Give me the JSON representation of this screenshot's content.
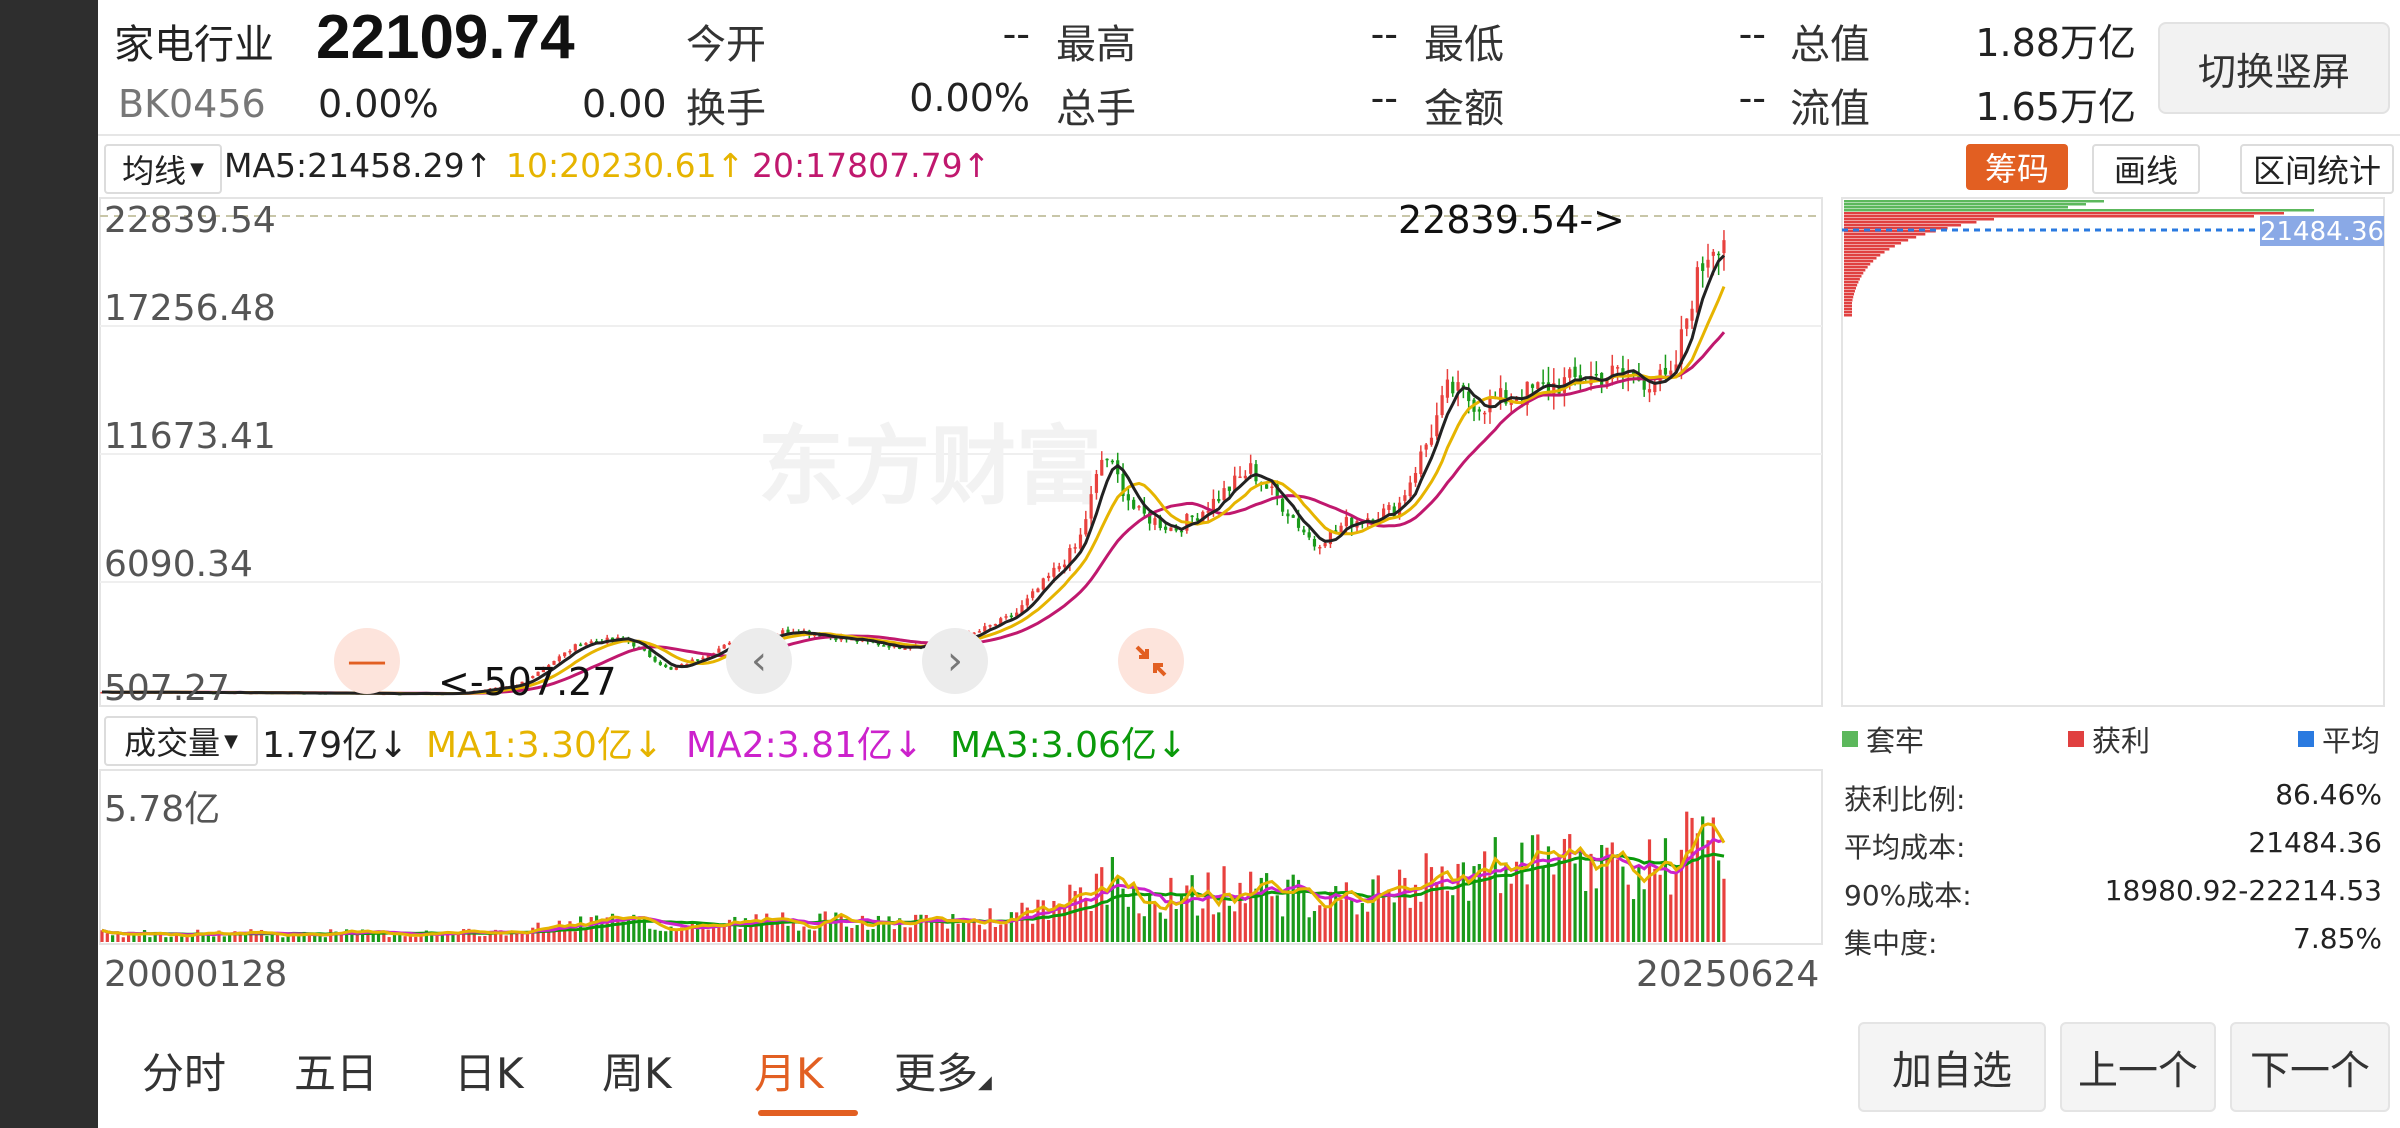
{
  "header": {
    "name": "家电行业",
    "price": "22109.74",
    "code": "BK0456",
    "change_pct": "0.00%",
    "change": "0.00",
    "open_label": "今开",
    "open_value": "--",
    "high_label": "最高",
    "high_value": "--",
    "low_label": "最低",
    "low_value": "--",
    "total_value_label": "总值",
    "total_value": "1.88万亿",
    "turnover_label": "换手",
    "turnover_value": "0.00%",
    "volume_label": "总手",
    "volume_value": "--",
    "amount_label": "金额",
    "amount_value": "--",
    "float_value_label": "流值",
    "float_value": "1.65万亿",
    "switch_label": "切换竖屏"
  },
  "ma_bar": {
    "selector": "均线",
    "ma5": "MA5:21458.29↑",
    "ma10": "10:20230.61↑",
    "ma20": "20:17807.79↑",
    "colors": {
      "ma5": "#222222",
      "ma10": "#e6b400",
      "ma20": "#c0186e"
    }
  },
  "tools": {
    "chips": "筹码",
    "draw": "画线",
    "range_stats": "区间统计"
  },
  "price_axis": [
    "22839.54",
    "17256.48",
    "11673.41",
    "6090.34",
    "507.27"
  ],
  "annotations": {
    "max": "22839.54->",
    "min": "<-507.27"
  },
  "watermark": "东方财富",
  "volume_bar": {
    "selector": "成交量",
    "current": "1.79亿↓",
    "ma1": "MA1:3.30亿↓",
    "ma2": "MA2:3.81亿↓",
    "ma3": "MA3:3.06亿↓",
    "axis_max": "5.78亿",
    "colors": {
      "ma1": "#e6b400",
      "ma2": "#cc22cc",
      "ma3": "#0a9a0a"
    }
  },
  "date_axis": {
    "start": "20000128",
    "end": "20250624"
  },
  "chip_panel": {
    "cost_tag": "21484.36",
    "legend": [
      "套牢",
      "获利",
      "平均"
    ],
    "legend_colors": [
      "#5cb85c",
      "#e04040",
      "#2a7ae0"
    ],
    "stats": [
      {
        "label": "获利比例:",
        "value": "86.46%"
      },
      {
        "label": "平均成本:",
        "value": "21484.36"
      },
      {
        "label": "90%成本:",
        "value": "18980.92-22214.53"
      },
      {
        "label": "集中度:",
        "value": "7.85%"
      }
    ]
  },
  "tabs": [
    "分时",
    "五日",
    "日K",
    "周K",
    "月K",
    "更多"
  ],
  "active_tab": "月K",
  "buttons": {
    "add_watch": "加自选",
    "prev": "上一个",
    "next": "下一个"
  },
  "colors": {
    "up": "#e8413e",
    "down": "#1a9a1a",
    "accent": "#e25f22"
  },
  "chart_data": {
    "type": "candlestick",
    "period": "monthly",
    "ylim": [
      507.27,
      22839.54
    ],
    "x_range": [
      "20000128",
      "20250624"
    ],
    "ma_close_path": [
      [
        2000.0,
        600
      ],
      [
        2003.0,
        560
      ],
      [
        2005.5,
        520
      ],
      [
        2006.5,
        900
      ],
      [
        2007.5,
        2900
      ],
      [
        2008.2,
        3100
      ],
      [
        2008.9,
        1600
      ],
      [
        2009.8,
        2800
      ],
      [
        2010.8,
        3500
      ],
      [
        2011.8,
        3000
      ],
      [
        2012.5,
        2700
      ],
      [
        2013.5,
        3100
      ],
      [
        2014.3,
        4200
      ],
      [
        2015.3,
        7500
      ],
      [
        2015.7,
        11800
      ],
      [
        2016.2,
        9000
      ],
      [
        2016.8,
        8200
      ],
      [
        2017.3,
        9200
      ],
      [
        2017.8,
        10500
      ],
      [
        2018.0,
        11000
      ],
      [
        2018.6,
        9000
      ],
      [
        2019.0,
        7500
      ],
      [
        2019.5,
        8500
      ],
      [
        2020.3,
        9200
      ],
      [
        2020.8,
        12500
      ],
      [
        2021.1,
        14800
      ],
      [
        2021.6,
        14000
      ],
      [
        2022.2,
        14500
      ],
      [
        2023.1,
        15200
      ],
      [
        2023.8,
        15500
      ],
      [
        2024.2,
        15200
      ],
      [
        2024.6,
        15100
      ],
      [
        2024.9,
        19000
      ],
      [
        2025.2,
        21500
      ],
      [
        2025.48,
        22109.74
      ]
    ],
    "volume_max": "5.78亿"
  }
}
